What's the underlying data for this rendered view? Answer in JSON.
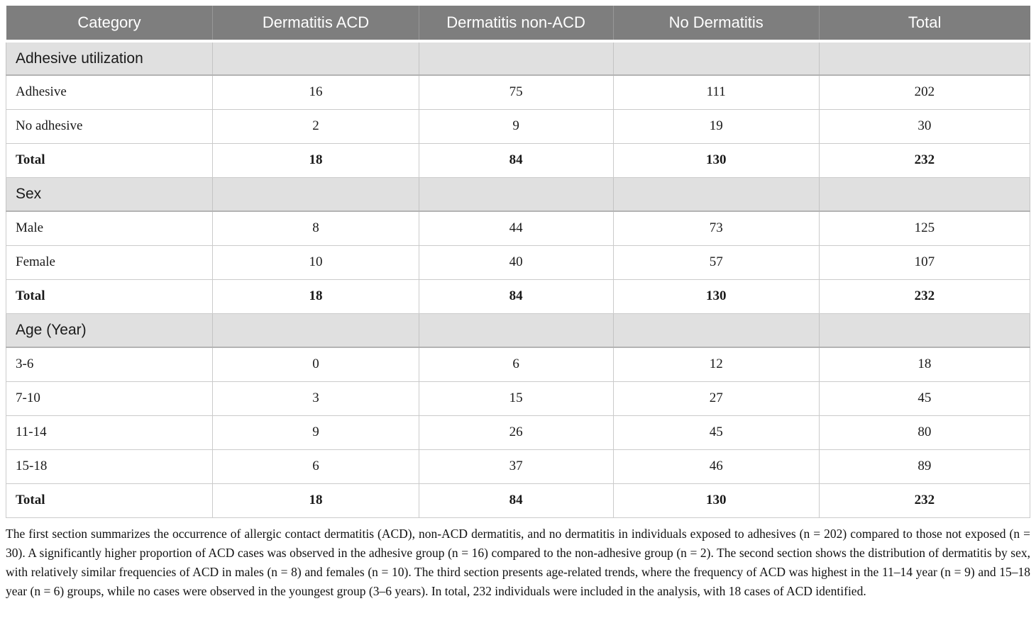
{
  "table": {
    "headers": [
      "Category",
      "Dermatitis ACD",
      "Dermatitis non-ACD",
      "No Dermatitis",
      "Total"
    ],
    "sections": [
      {
        "title": "Adhesive utilization",
        "rows": [
          {
            "label": "Adhesive",
            "values": [
              "16",
              "75",
              "111",
              "202"
            ],
            "bold": false
          },
          {
            "label": "No adhesive",
            "values": [
              "2",
              "9",
              "19",
              "30"
            ],
            "bold": false
          },
          {
            "label": "Total",
            "values": [
              "18",
              "84",
              "130",
              "232"
            ],
            "bold": true
          }
        ]
      },
      {
        "title": "Sex",
        "rows": [
          {
            "label": "Male",
            "values": [
              "8",
              "44",
              "73",
              "125"
            ],
            "bold": false
          },
          {
            "label": "Female",
            "values": [
              "10",
              "40",
              "57",
              "107"
            ],
            "bold": false
          },
          {
            "label": "Total",
            "values": [
              "18",
              "84",
              "130",
              "232"
            ],
            "bold": true
          }
        ]
      },
      {
        "title": "Age (Year)",
        "rows": [
          {
            "label": "3-6",
            "values": [
              "0",
              "6",
              "12",
              "18"
            ],
            "bold": false
          },
          {
            "label": "7-10",
            "values": [
              "3",
              "15",
              "27",
              "45"
            ],
            "bold": false
          },
          {
            "label": "11-14",
            "values": [
              "9",
              "26",
              "45",
              "80"
            ],
            "bold": false
          },
          {
            "label": "15-18",
            "values": [
              "6",
              "37",
              "46",
              "89"
            ],
            "bold": false
          },
          {
            "label": "Total",
            "values": [
              "18",
              "84",
              "130",
              "232"
            ],
            "bold": true
          }
        ]
      }
    ]
  },
  "footnote": "The first section summarizes the occurrence of allergic contact dermatitis (ACD), non-ACD dermatitis, and no dermatitis in individuals exposed to adhesives (n = 202) compared to those not exposed (n = 30). A significantly higher proportion of ACD cases was observed in the adhesive group (n = 16) compared to the non-adhesive group (n = 2). The second section shows the distribution of dermatitis by sex, with relatively similar frequencies of ACD in males (n = 8) and females (n = 10). The third section presents age-related trends, where the frequency of ACD was highest in the 11–14 year (n = 9) and 15–18 year (n = 6) groups, while no cases were observed in the youngest group (3–6 years). In total, 232 individuals were included in the analysis, with 18 cases of ACD identified.",
  "colors": {
    "header_bg": "#7e7e7e",
    "header_text": "#ffffff",
    "section_bg": "#e0e0e0",
    "border": "#cbcbcb",
    "text": "#1a1a1a"
  }
}
